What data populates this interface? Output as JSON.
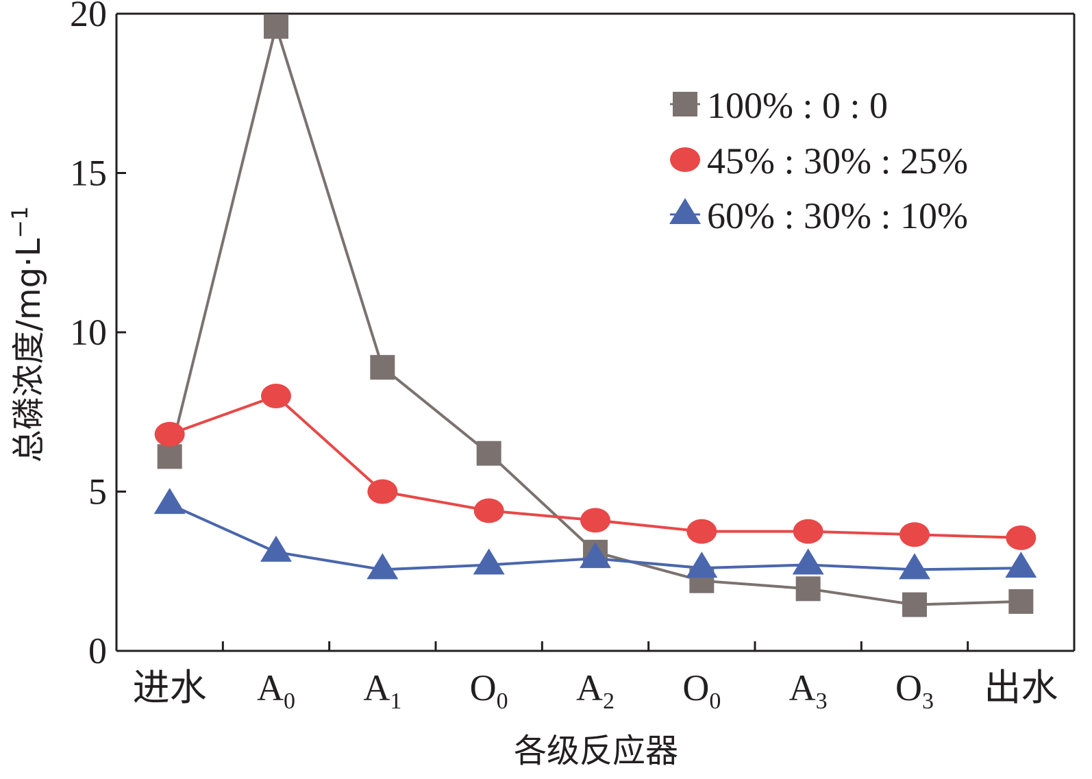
{
  "chart_data": {
    "type": "line",
    "title": "",
    "xlabel": "各级反应器",
    "ylabel": "总磷浓度/mg·L",
    "ylabel_superscript": "−1",
    "ylim": [
      0,
      20
    ],
    "yticks": [
      0,
      5,
      10,
      15,
      20
    ],
    "ytick_labels": [
      "0",
      "5",
      "10",
      "15",
      "20"
    ],
    "categories": [
      {
        "main": "进水",
        "sub": ""
      },
      {
        "main": "A",
        "sub": "0"
      },
      {
        "main": "A",
        "sub": "1"
      },
      {
        "main": "O",
        "sub": "0"
      },
      {
        "main": "A",
        "sub": "2"
      },
      {
        "main": "O",
        "sub": "0"
      },
      {
        "main": "A",
        "sub": "3"
      },
      {
        "main": "O",
        "sub": "3"
      },
      {
        "main": "出水",
        "sub": ""
      }
    ],
    "legend_position": "top-right",
    "grid": false,
    "series": [
      {
        "name": "100% : 0 : 0",
        "marker": "square",
        "color": "#7b7270",
        "values": [
          6.1,
          19.6,
          8.9,
          6.2,
          3.1,
          2.2,
          1.95,
          1.45,
          1.55
        ]
      },
      {
        "name": "45% : 30% : 25%",
        "marker": "circle",
        "color": "#e84848",
        "values": [
          6.8,
          8.0,
          5.0,
          4.4,
          4.1,
          3.75,
          3.75,
          3.65,
          3.55
        ]
      },
      {
        "name": "60% : 30% : 10%",
        "marker": "triangle",
        "color": "#4a66ad",
        "values": [
          4.6,
          3.1,
          2.55,
          2.7,
          2.9,
          2.6,
          2.7,
          2.55,
          2.6
        ]
      }
    ]
  }
}
